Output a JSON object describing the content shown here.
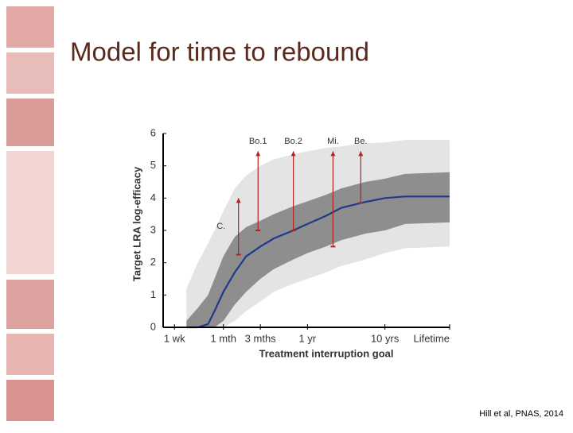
{
  "title": "Model for time to rebound",
  "citation": "Hill et al, PNAS, 2014",
  "chart_data": {
    "type": "band-line",
    "ylabel": "Target LRA log-efficacy",
    "xlabel": "Treatment interruption goal",
    "log_x": true,
    "xlim": [
      5,
      25000
    ],
    "xticks": [
      {
        "value": 7,
        "label": "1 wk"
      },
      {
        "value": 30,
        "label": "1 mth"
      },
      {
        "value": 90,
        "label": "3 mths"
      },
      {
        "value": 365,
        "label": "1 yr"
      },
      {
        "value": 3650,
        "label": "10 yrs"
      },
      {
        "value": 25000,
        "label": "Lifetime"
      }
    ],
    "ylim": [
      0,
      6
    ],
    "yticks": [
      0,
      1,
      2,
      3,
      4,
      5,
      6
    ],
    "x": [
      10,
      14,
      19,
      23,
      30,
      42,
      59,
      90,
      134,
      240,
      365,
      630,
      1000,
      2040,
      3650,
      6700,
      25000
    ],
    "bands": [
      {
        "color": "#e4e4e4",
        "upper": [
          1.2,
          2.0,
          2.6,
          3.0,
          3.6,
          4.3,
          4.7,
          5.0,
          5.2,
          5.35,
          5.45,
          5.55,
          5.6,
          5.7,
          5.72,
          5.8,
          5.8
        ],
        "lower": [
          0,
          0,
          0,
          0,
          0,
          0.2,
          0.5,
          0.8,
          1.1,
          1.35,
          1.5,
          1.7,
          1.9,
          2.1,
          2.3,
          2.45,
          2.5
        ]
      },
      {
        "color": "#8e8e8e",
        "upper": [
          0.2,
          0.6,
          1.0,
          1.5,
          2.2,
          2.8,
          3.1,
          3.3,
          3.5,
          3.75,
          3.9,
          4.1,
          4.3,
          4.5,
          4.6,
          4.75,
          4.8
        ],
        "lower": [
          0,
          0,
          0,
          0,
          0.2,
          0.7,
          1.1,
          1.5,
          1.8,
          2.1,
          2.3,
          2.5,
          2.7,
          2.9,
          3.0,
          3.2,
          3.25
        ]
      }
    ],
    "line": {
      "color": "#1f3a8a",
      "values": [
        0,
        0,
        0.1,
        0.5,
        1.1,
        1.7,
        2.2,
        2.5,
        2.75,
        3.0,
        3.2,
        3.45,
        3.7,
        3.88,
        4.0,
        4.05,
        4.05
      ]
    },
    "annotations": [
      {
        "label": "Bo.1",
        "x": 84,
        "low": 3.0,
        "high": 5.45
      },
      {
        "label": "Bo.2",
        "x": 240,
        "low": 3.0,
        "high": 5.45
      },
      {
        "label": "Mi.",
        "x": 780,
        "low": 2.5,
        "high": 5.45
      },
      {
        "label": "Be.",
        "x": 1780,
        "low": 3.85,
        "high": 5.45
      },
      {
        "label": "C.",
        "x": 47,
        "low": 2.25,
        "high": 4.0
      }
    ],
    "annotation_color": "#b22222"
  }
}
